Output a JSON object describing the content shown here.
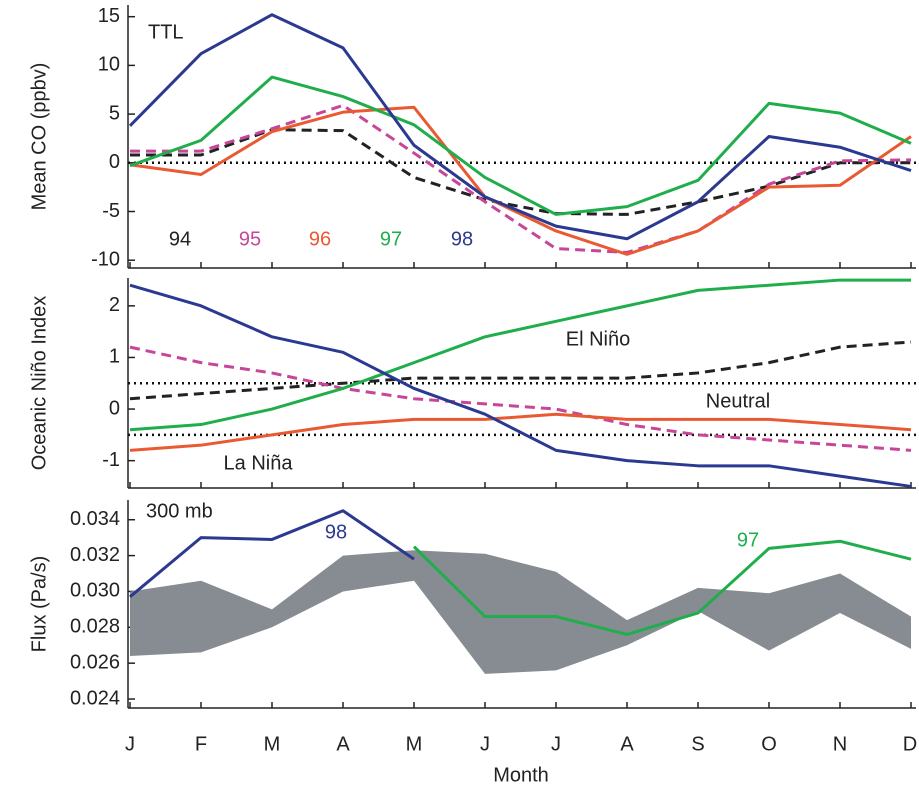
{
  "chart_data": [
    {
      "type": "line",
      "ylabel": "Mean CO (ppbv)",
      "annotations": [
        "TTL"
      ],
      "ylim": [
        -10.8,
        16.2
      ],
      "yticks": [
        -10,
        -5,
        0,
        5,
        10,
        15
      ],
      "reflines": [
        0
      ],
      "series": [
        {
          "name": "94",
          "color": "#222222",
          "dash": true,
          "values": [
            0.8,
            0.8,
            3.4,
            3.3,
            -1.5,
            -3.8,
            -5.2,
            -5.3,
            -4.0,
            -2.4,
            0.0,
            0.0
          ]
        },
        {
          "name": "95",
          "color": "#c8469a",
          "dash": true,
          "values": [
            1.2,
            1.2,
            3.5,
            5.9,
            1.0,
            -4.0,
            -8.8,
            -9.2,
            -7.0,
            -2.2,
            0.2,
            0.3
          ]
        },
        {
          "name": "96",
          "color": "#ea5a32",
          "dash": false,
          "values": [
            -0.2,
            -1.2,
            3.2,
            5.2,
            5.7,
            -3.5,
            -7.0,
            -9.4,
            -7.0,
            -2.5,
            -2.3,
            2.7
          ]
        },
        {
          "name": "97",
          "color": "#1fae4b",
          "dash": false,
          "values": [
            -0.3,
            2.3,
            8.8,
            6.8,
            3.9,
            -1.5,
            -5.3,
            -4.5,
            -1.8,
            6.1,
            5.1,
            2.0
          ]
        },
        {
          "name": "98",
          "color": "#2b3990",
          "dash": false,
          "values": [
            3.8,
            11.2,
            15.2,
            11.8,
            1.8,
            -3.5,
            -6.5,
            -7.8,
            -4.0,
            2.7,
            1.6,
            -0.8
          ]
        }
      ]
    },
    {
      "type": "line",
      "ylabel": "Oceanic Niño Index",
      "annotations": [
        "El Niño",
        "Neutral",
        "La Niña"
      ],
      "ylim": [
        -1.53,
        2.54
      ],
      "yticks": [
        -1,
        0,
        1,
        2
      ],
      "reflines": [
        0.5,
        -0.5
      ],
      "series": [
        {
          "name": "94",
          "color": "#222222",
          "dash": true,
          "values": [
            0.2,
            0.3,
            0.4,
            0.5,
            0.6,
            0.6,
            0.6,
            0.6,
            0.7,
            0.9,
            1.2,
            1.3
          ]
        },
        {
          "name": "95",
          "color": "#c8469a",
          "dash": true,
          "values": [
            1.2,
            0.9,
            0.7,
            0.4,
            0.2,
            0.1,
            0.0,
            -0.3,
            -0.5,
            -0.6,
            -0.7,
            -0.8
          ]
        },
        {
          "name": "96",
          "color": "#ea5a32",
          "dash": false,
          "values": [
            -0.8,
            -0.7,
            -0.5,
            -0.3,
            -0.2,
            -0.2,
            -0.1,
            -0.2,
            -0.2,
            -0.2,
            -0.3,
            -0.4
          ]
        },
        {
          "name": "97",
          "color": "#1fae4b",
          "dash": false,
          "values": [
            -0.4,
            -0.3,
            0.0,
            0.4,
            0.9,
            1.4,
            1.7,
            2.0,
            2.3,
            2.4,
            2.5,
            2.5
          ]
        },
        {
          "name": "98",
          "color": "#2b3990",
          "dash": false,
          "values": [
            2.4,
            2.0,
            1.4,
            1.1,
            0.4,
            -0.1,
            -0.8,
            -1.0,
            -1.1,
            -1.1,
            -1.3,
            -1.5
          ]
        }
      ]
    },
    {
      "type": "line",
      "ylabel": "Flux (Pa/s)",
      "annotations": [
        "300 mb"
      ],
      "xlabel": "Month",
      "categories": [
        "J",
        "F",
        "M",
        "A",
        "M",
        "J",
        "J",
        "A",
        "S",
        "O",
        "N",
        "D"
      ],
      "ylim": [
        0.0235,
        0.0351
      ],
      "yticks": [
        {
          "value": 0.024,
          "label": "0.024"
        },
        {
          "value": 0.026,
          "label": "0.026"
        },
        {
          "value": 0.028,
          "label": "0.028"
        },
        {
          "value": 0.03,
          "label": "0.030"
        },
        {
          "value": 0.032,
          "label": "0.032"
        },
        {
          "value": 0.034,
          "label": "0.034"
        }
      ],
      "band": {
        "color": "#878c92",
        "upper": [
          0.03,
          0.0306,
          0.029,
          0.032,
          0.0323,
          0.0321,
          0.0311,
          0.0284,
          0.0302,
          0.0299,
          0.031,
          0.0286
        ],
        "lower": [
          0.0264,
          0.0266,
          0.028,
          0.03,
          0.0306,
          0.0254,
          0.0256,
          0.027,
          0.0289,
          0.0267,
          0.0288,
          0.0268
        ]
      },
      "series": [
        {
          "name": "98",
          "color": "#2b3990",
          "dash": false,
          "values": [
            0.0297,
            0.033,
            0.0329,
            0.0345,
            0.0318,
            null,
            null,
            null,
            null,
            null,
            null,
            null
          ]
        },
        {
          "name": "97",
          "color": "#1fae4b",
          "dash": false,
          "values": [
            null,
            null,
            null,
            null,
            0.0325,
            0.0286,
            0.0286,
            0.0276,
            0.0288,
            0.0324,
            0.0328,
            0.0318
          ]
        }
      ]
    }
  ]
}
